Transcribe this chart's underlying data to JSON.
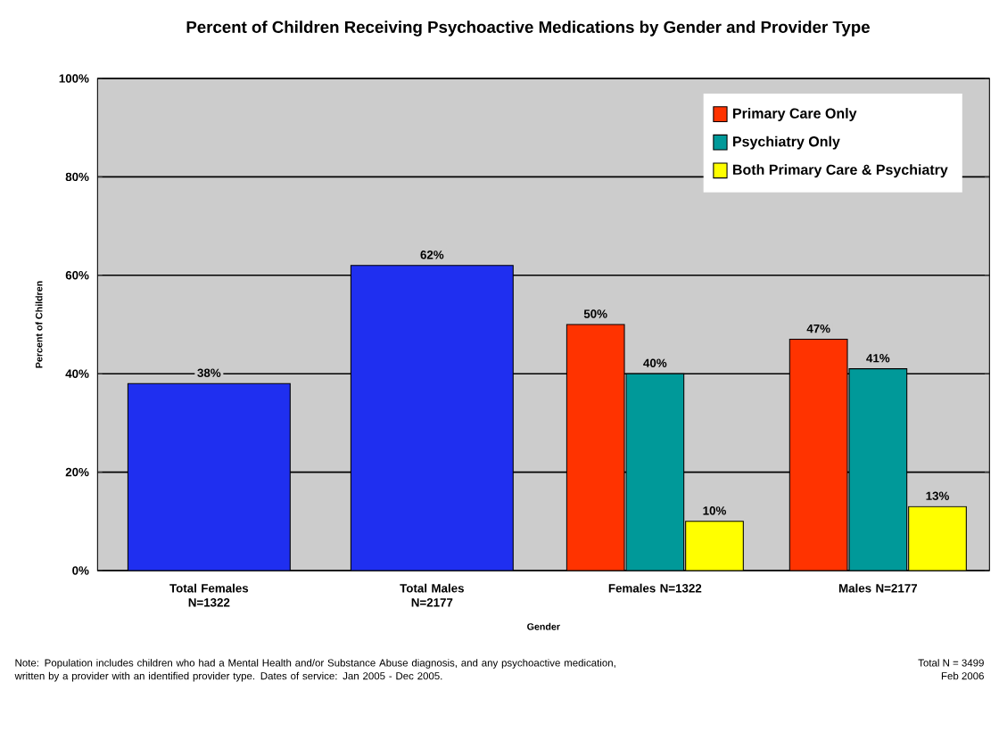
{
  "chart_data": {
    "type": "bar",
    "title": "Percent of Children Receiving Psychoactive Medications by Gender and Provider Type",
    "xlabel": "Gender",
    "ylabel": "Percent of Children",
    "categories": [
      "Total Females N=1322",
      "Total Males N=2177",
      "Females N=1322",
      "Males N=2177"
    ],
    "series": [
      {
        "color": "#1f2ff0",
        "values": [
          38,
          62,
          null,
          null
        ],
        "value_labels": [
          "38%",
          "62%",
          null,
          null
        ]
      },
      {
        "name": "Primary Care Only",
        "color": "#ff3300",
        "values": [
          null,
          null,
          50,
          47
        ],
        "value_labels": [
          null,
          null,
          "50%",
          "47%"
        ]
      },
      {
        "name": "Psychiatry Only",
        "color": "#009999",
        "values": [
          null,
          null,
          40,
          41
        ],
        "value_labels": [
          null,
          null,
          "40%",
          "41%"
        ]
      },
      {
        "name": "Both Primary Care & Psychiatry",
        "color": "#ffff00",
        "values": [
          null,
          null,
          10,
          13
        ],
        "value_labels": [
          null,
          null,
          "10%",
          "13%"
        ]
      }
    ],
    "ylim": [
      0,
      100
    ],
    "yticks": [
      {
        "value": 0,
        "label": "0%"
      },
      {
        "value": 20,
        "label": "20%"
      },
      {
        "value": 40,
        "label": "40%"
      },
      {
        "value": 60,
        "label": "60%"
      },
      {
        "value": 80,
        "label": "80%"
      },
      {
        "value": 100,
        "label": "100%"
      }
    ],
    "grid": "y",
    "legend": "top right",
    "annotations": [
      "Note: Population includes children who had a Mental Health and/or Substance Abuse diagnosis, and any psychoactive medication, written by a provider with an identified provider type.  Dates of service: Jan 2005 - Dec 2005.",
      "Total N = 3499",
      "Feb 2006"
    ]
  }
}
